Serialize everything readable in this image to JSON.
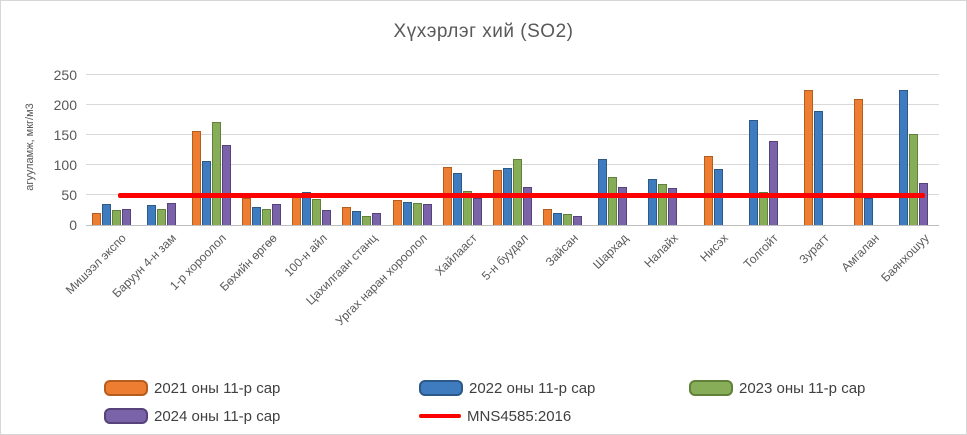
{
  "chart_data": {
    "type": "bar",
    "title": "Хүхэрлэг хий (SO2)",
    "ylabel": "агууламж,  мкг/м3",
    "ylim": [
      0,
      250
    ],
    "y_ticks": [
      0,
      50,
      100,
      150,
      200,
      250
    ],
    "grid": "horizontal",
    "legend_position": "bottom",
    "categories": [
      "Мишээл экспо",
      "Баруун 4-н зам",
      "1-р хороолол",
      "Бөхийн өргөө",
      "100-н айл",
      "Цахилгаан станц",
      "Ургах наран хороолол",
      "Хайлааст",
      "5-н буудал",
      "Зайсан",
      "Шархад",
      "Налайх",
      "Нисэх",
      "Толгойт",
      "Зурагт",
      "Амгалан",
      "Баянхошуу"
    ],
    "series": [
      {
        "name": "2021 оны 11-р сар",
        "color": "#ED7D31",
        "border_color": "#B55C1F",
        "values": [
          20,
          null,
          156,
          45,
          47,
          30,
          41,
          97,
          92,
          27,
          null,
          null,
          115,
          null,
          225,
          210,
          null
        ]
      },
      {
        "name": "2022 оны 11-р сар",
        "color": "#3E7BBF",
        "border_color": "#2C5985",
        "values": [
          35,
          33,
          106,
          30,
          55,
          24,
          39,
          87,
          95,
          20,
          110,
          77,
          94,
          175,
          190,
          45,
          225
        ]
      },
      {
        "name": "2023 оны 11-р сар",
        "color": "#87AD58",
        "border_color": "#61803A",
        "values": [
          25,
          27,
          172,
          27,
          43,
          15,
          36,
          57,
          110,
          18,
          80,
          68,
          null,
          55,
          null,
          null,
          152
        ]
      },
      {
        "name": "2024 оны 11-р сар",
        "color": "#7A63A8",
        "border_color": "#554379",
        "values": [
          27,
          37,
          133,
          35,
          25,
          20,
          35,
          45,
          64,
          15,
          63,
          62,
          null,
          140,
          null,
          null,
          70
        ]
      }
    ],
    "ref_line": {
      "name": "MNS4585:2016",
      "value": 50,
      "color": "#FE0000"
    }
  },
  "legend_layout": {
    "row1": [
      0,
      1,
      2
    ],
    "row2": [
      3,
      "ref"
    ]
  },
  "colors": {
    "title_text": "#595959",
    "axis_text": "#595959",
    "legend_text": "#404040",
    "gridline": "#D9D9D9",
    "axis_line": "#BFBFBF"
  }
}
